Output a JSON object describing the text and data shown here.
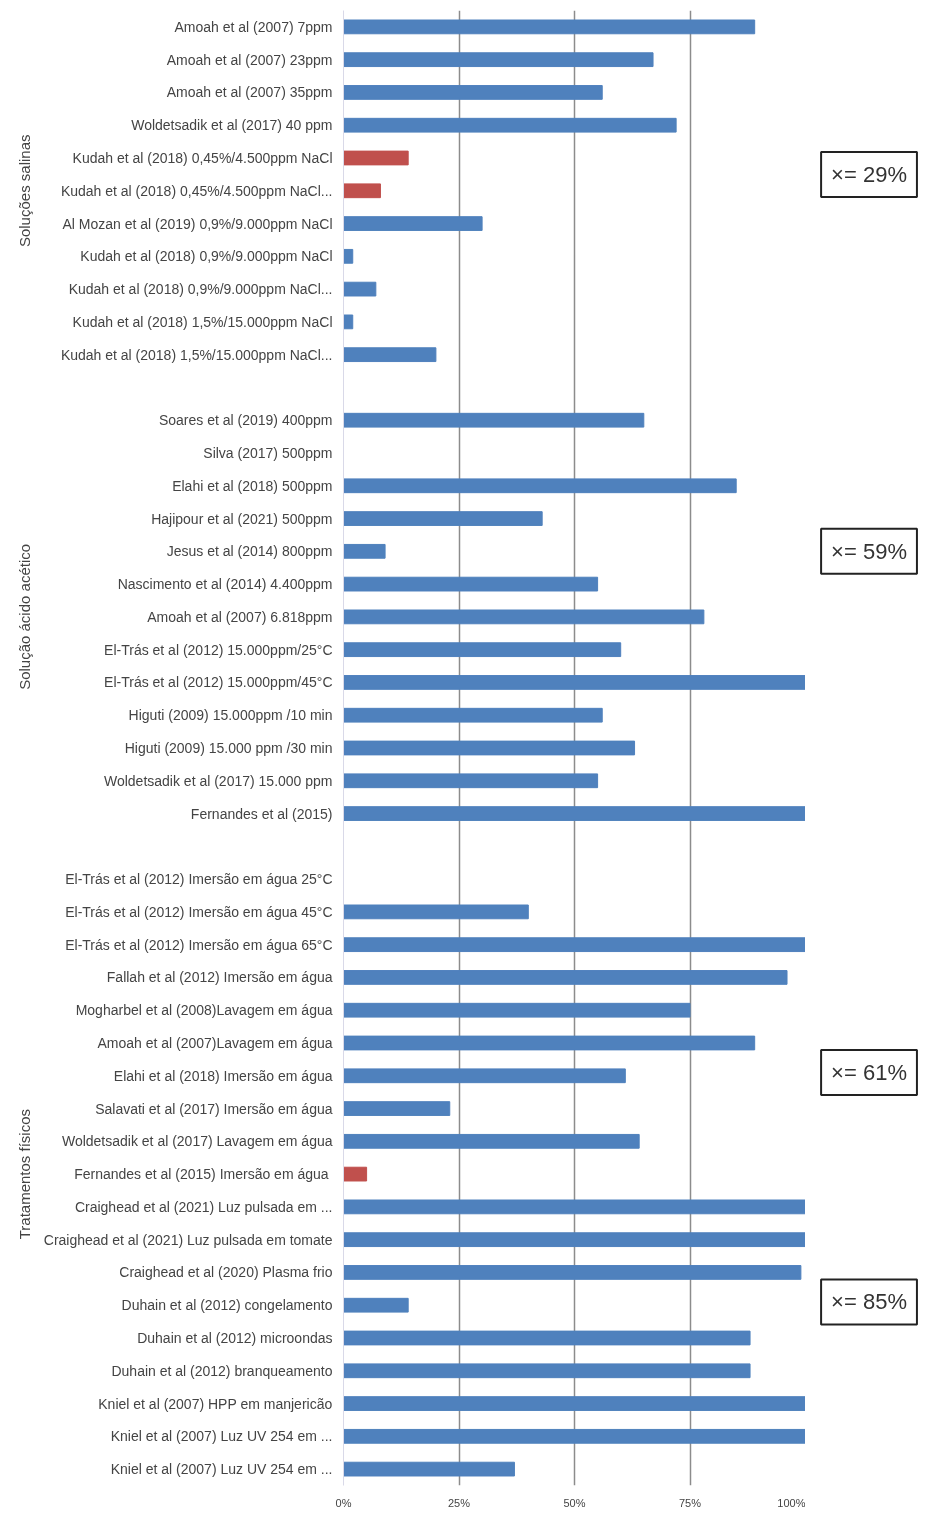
{
  "chart_data": {
    "type": "bar",
    "orientation": "horizontal",
    "categories": [
      "Amoah et al (2007) 7ppm",
      "Amoah et al (2007) 23ppm",
      "Amoah et al (2007) 35ppm",
      "Woldetsadik et al (2017) 40 ppm",
      "Kudah et al (2018) 0,45%/4.500ppm NaCl",
      "Kudah et al (2018) 0,45%/4.500ppm NaCl...",
      "Al Mozan et al (2019) 0,9%/9.000ppm NaCl",
      "Kudah et al (2018) 0,9%/9.000ppm NaCl",
      "Kudah et al (2018) 0,9%/9.000ppm NaCl...",
      "Kudah et al (2018) 1,5%/15.000ppm NaCl",
      "Kudah et al (2018) 1,5%/15.000ppm NaCl...",
      null,
      "Soares et al (2019) 400ppm",
      "Silva (2017) 500ppm",
      "Elahi et al (2018) 500ppm",
      "Hajipour et al (2021) 500ppm",
      "Jesus et al (2014) 800ppm",
      "Nascimento et al (2014) 4.400ppm",
      "Amoah et al (2007) 6.818ppm",
      "El-Trás et al (2012) 15.000ppm/25°C",
      "El-Trás et al (2012) 15.000ppm/45°C",
      "Higuti (2009) 15.000ppm /10 min",
      "Higuti (2009) 15.000 ppm /30 min",
      "Woldetsadik et al (2017) 15.000 ppm",
      "Fernandes et al (2015)",
      null,
      "El-Trás et al (2012) Imersão em água 25°C",
      "El-Trás et al (2012) Imersão em água 45°C",
      "El-Trás et al (2012) Imersão em água 65°C",
      "Fallah et al (2012) Imersão em água",
      "Mogharbel et al (2008)Lavagem em água",
      "Amoah et al (2007)Lavagem em água",
      "Elahi et al (2018) Imersão em água",
      "Salavati et al (2017) Imersão em água",
      "Woldetsadik et al (2017) Lavagem em água",
      "Fernandes et al (2015)  Imersão em água",
      "Craighead et al (2021) Luz pulsada em ...",
      "Craighead et al (2021) Luz pulsada em tomate",
      "Craighead et al (2020) Plasma frio",
      "Duhain et al (2012) congelamento",
      "Duhain et al (2012) microondas",
      "Duhain et al (2012) branqueamento",
      "Kniel et al (2007) HPP em manjericão",
      "Kniel et al (2007) Luz UV 254 em ...",
      "Kniel et al (2007) Luz UV 254 em ..."
    ],
    "values": [
      89,
      67,
      56,
      72,
      14,
      8,
      30,
      2,
      7,
      2,
      20,
      null,
      65,
      null,
      85,
      43,
      9,
      55,
      78,
      60,
      100,
      56,
      63,
      55,
      100,
      null,
      null,
      40,
      100,
      96,
      75,
      89,
      61,
      23,
      64,
      5,
      100,
      100,
      99,
      14,
      88,
      88,
      100,
      100,
      37
    ],
    "colors": [
      "#4f81bd",
      "#4f81bd",
      "#4f81bd",
      "#4f81bd",
      "#c0504d",
      "#c0504d",
      "#4f81bd",
      "#4f81bd",
      "#4f81bd",
      "#4f81bd",
      "#4f81bd",
      "#ffffff",
      "#4f81bd",
      "#4f81bd",
      "#4f81bd",
      "#4f81bd",
      "#4f81bd",
      "#4f81bd",
      "#4f81bd",
      "#4f81bd",
      "#4f81bd",
      "#4f81bd",
      "#4f81bd",
      "#4f81bd",
      "#4f81bd",
      "#ffffff",
      "#4f81bd",
      "#4f81bd",
      "#4f81bd",
      "#4f81bd",
      "#4f81bd",
      "#4f81bd",
      "#4f81bd",
      "#4f81bd",
      "#4f81bd",
      "#c0504d",
      "#4f81bd",
      "#4f81bd",
      "#4f81bd",
      "#4f81bd",
      "#4f81bd",
      "#4f81bd",
      "#4f81bd",
      "#4f81bd",
      "#4f81bd"
    ],
    "xlim": [
      0,
      100
    ],
    "xticks": [
      {
        "value": 0,
        "label": "0%"
      },
      {
        "value": 25,
        "label": "25%"
      },
      {
        "value": 50,
        "label": "50%"
      },
      {
        "value": 75,
        "label": "75%"
      },
      {
        "value": 100,
        "label": "100%"
      }
    ],
    "grid": "x",
    "annotations": [
      "Soluções salinas",
      "Solução ácido acético",
      "Tratamentos físicos",
      "×= 29%",
      "×= 59%",
      "×= 61%",
      "×= 85%"
    ]
  }
}
